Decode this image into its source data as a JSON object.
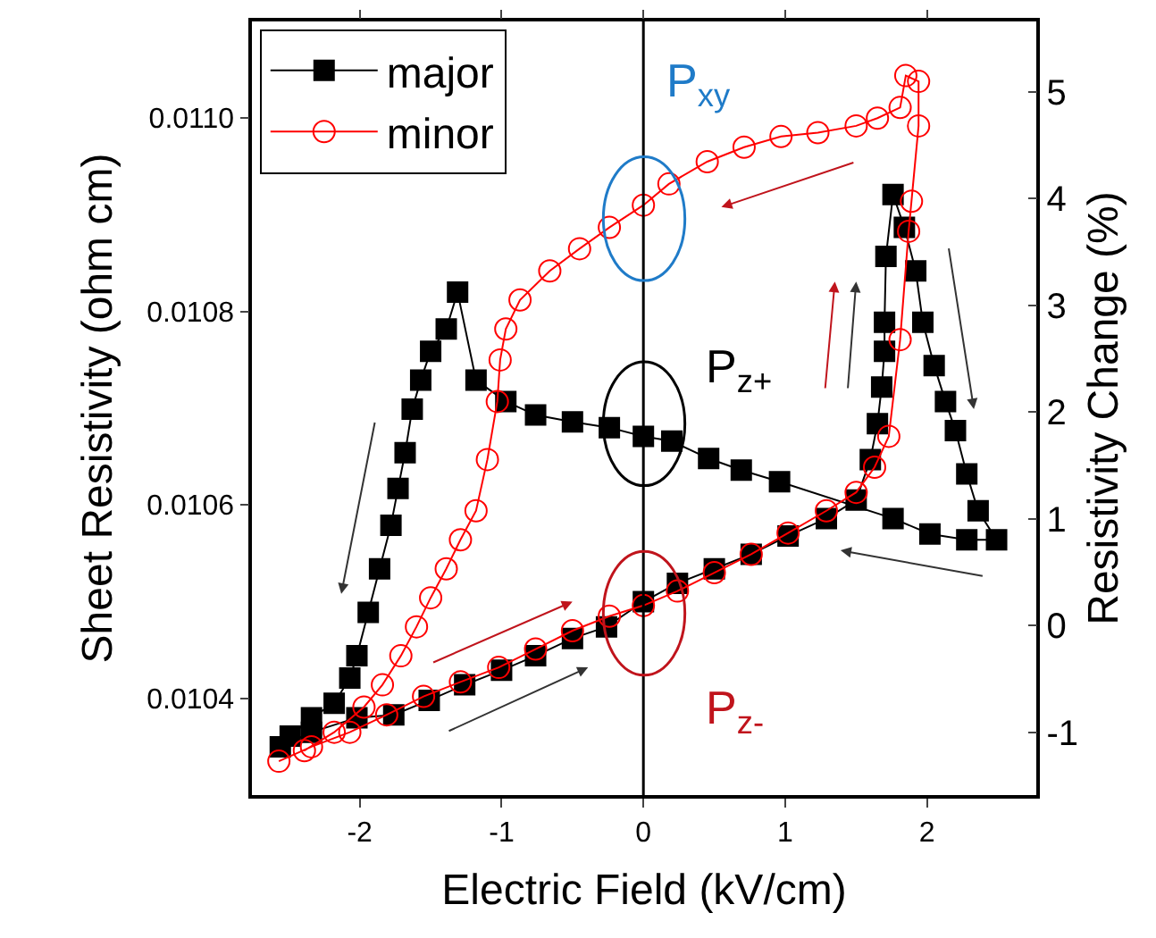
{
  "chart_data": {
    "type": "line",
    "xlabel": "Electric Field (kV/cm)",
    "ylabel": "Sheet Resistivity (ohm cm)",
    "y2label": "Resistivity Change (%)",
    "xlim": [
      -2.76,
      2.77
    ],
    "xticks": [
      -2,
      -1,
      0,
      1,
      2
    ],
    "ylim": [
      0.0103,
      0.0111
    ],
    "yticks": [
      {
        "value": 0.0104,
        "label": "0.0104"
      },
      {
        "value": 0.0106,
        "label": "0.0106"
      },
      {
        "value": 0.0108,
        "label": "0.0108"
      },
      {
        "value": 0.011,
        "label": "0.0110"
      }
    ],
    "y2lim": [
      -1.59,
      5.66
    ],
    "y2ticks": [
      -1,
      0,
      1,
      2,
      3,
      4,
      5
    ],
    "legend": "top left",
    "line_style": "solid",
    "ref_lines": [
      {
        "axis": "x",
        "value": 0,
        "color": "#000000"
      }
    ],
    "annotations": [
      "P$_{xy}$",
      "P$_{z+}$",
      "P$_{z-}$"
    ],
    "series": [
      {
        "name": "major",
        "color": "#000000",
        "marker": "square",
        "x": [
          -2.56,
          -2.34,
          -2.02,
          -1.76,
          -1.51,
          -1.26,
          -1.0,
          -0.76,
          -0.5,
          -0.26,
          0,
          0.24,
          0.5,
          0.76,
          1.02,
          1.29,
          1.5,
          1.6,
          1.65,
          1.68,
          1.7,
          1.7,
          1.71,
          1.76,
          1.84,
          1.92,
          1.97,
          2.05,
          2.13,
          2.2,
          2.28,
          2.36,
          2.49,
          2.28,
          2.02,
          1.76,
          0.96,
          0.69,
          0.46,
          0.2,
          0,
          -0.24,
          -0.5,
          -0.76,
          -0.97,
          -1.18,
          -1.31,
          -1.39,
          -1.5,
          -1.57,
          -1.63,
          -1.68,
          -1.73,
          -1.78,
          -1.86,
          -1.94,
          -2.02,
          -2.07,
          -2.18,
          -2.34,
          -2.49
        ],
        "values": [
          0.01035,
          0.010365,
          0.01038,
          0.010383,
          0.010398,
          0.010414,
          0.010429,
          0.010444,
          0.010462,
          0.010474,
          0.0105,
          0.010519,
          0.010534,
          0.010549,
          0.010568,
          0.010586,
          0.010605,
          0.010647,
          0.010684,
          0.010722,
          0.010759,
          0.010789,
          0.010857,
          0.010921,
          0.010887,
          0.010842,
          0.010789,
          0.010744,
          0.010707,
          0.010677,
          0.010632,
          0.010594,
          0.010564,
          0.010564,
          0.01057,
          0.010586,
          0.010624,
          0.010636,
          0.010648,
          0.010666,
          0.010671,
          0.01068,
          0.010686,
          0.010693,
          0.010707,
          0.010729,
          0.01082,
          0.010782,
          0.010759,
          0.010729,
          0.010699,
          0.010654,
          0.010617,
          0.010579,
          0.010534,
          0.010489,
          0.010444,
          0.010421,
          0.010395,
          0.01038,
          0.010361
        ]
      },
      {
        "name": "minor",
        "color": "#ff0000",
        "marker": "circle",
        "x": [
          -2.57,
          -2.34,
          -2.07,
          -1.81,
          -1.55,
          -1.29,
          -1.02,
          -0.76,
          -0.5,
          -0.24,
          0,
          0.24,
          0.5,
          0.76,
          1.02,
          1.29,
          1.5,
          1.63,
          1.73,
          1.81,
          1.87,
          1.89,
          1.94,
          1.94,
          1.85,
          1.81,
          1.65,
          1.5,
          1.23,
          0.97,
          0.71,
          0.45,
          0.18,
          0,
          -0.24,
          -0.45,
          -0.66,
          -0.87,
          -0.97,
          -1.01,
          -1.03,
          -1.1,
          -1.18,
          -1.29,
          -1.39,
          -1.5,
          -1.6,
          -1.71,
          -1.84,
          -1.97,
          -2.18,
          -2.39
        ],
        "values": [
          0.010335,
          0.01035,
          0.010365,
          0.010383,
          0.010402,
          0.010417,
          0.010432,
          0.010451,
          0.01047,
          0.010485,
          0.010496,
          0.010511,
          0.01053,
          0.010549,
          0.010571,
          0.010594,
          0.010613,
          0.010639,
          0.010671,
          0.010771,
          0.010883,
          0.010914,
          0.010992,
          0.011038,
          0.011044,
          0.011011,
          0.011,
          0.010992,
          0.010985,
          0.010981,
          0.01097,
          0.010955,
          0.010932,
          0.01091,
          0.010887,
          0.010865,
          0.010842,
          0.010812,
          0.010782,
          0.01075,
          0.010707,
          0.010647,
          0.010594,
          0.010564,
          0.010534,
          0.010504,
          0.010474,
          0.010444,
          0.010414,
          0.010391,
          0.010365,
          0.010346
        ]
      }
    ]
  }
}
